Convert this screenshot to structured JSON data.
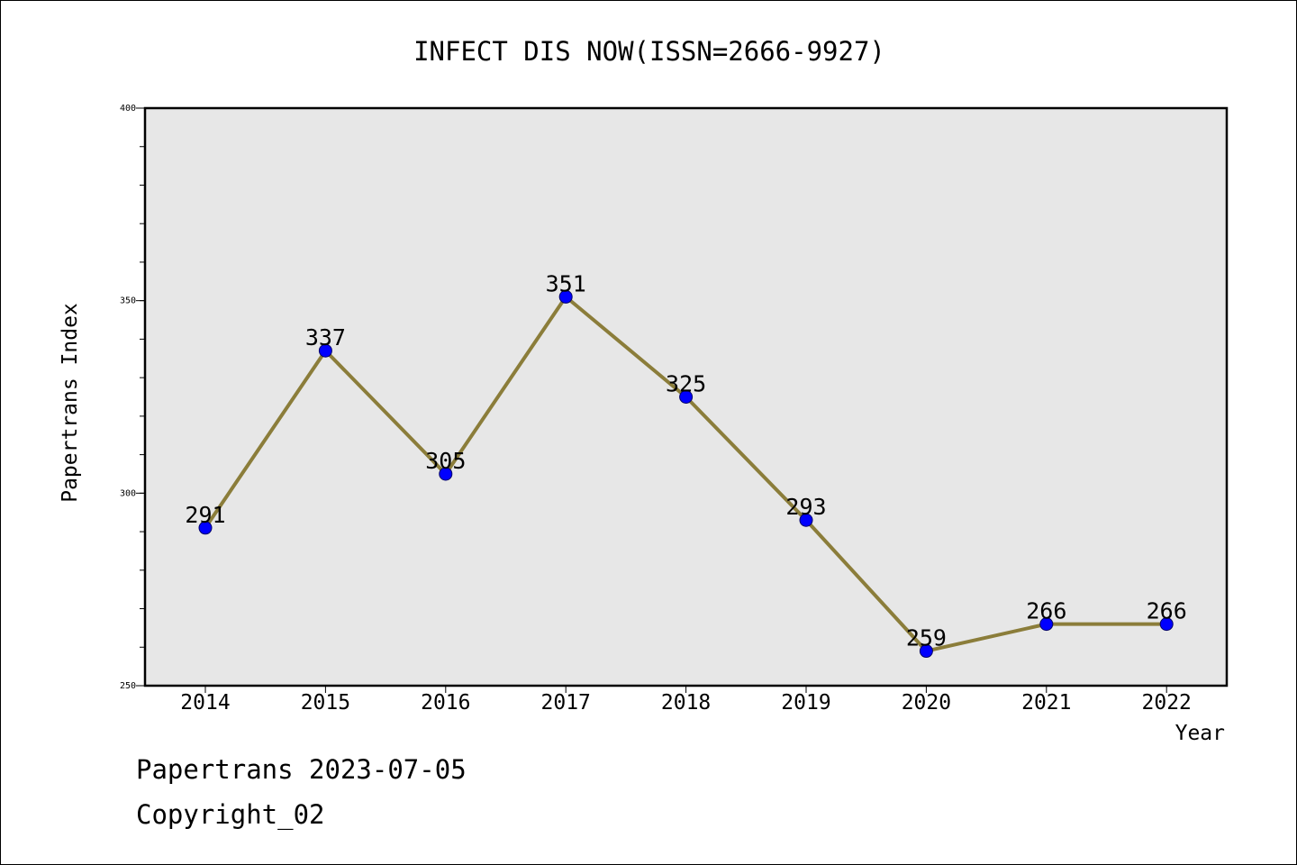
{
  "chart_data": {
    "type": "line",
    "title": "INFECT DIS NOW(ISSN=2666-9927)",
    "xlabel": "Year",
    "ylabel": "Papertrans Index",
    "categories": [
      "2014",
      "2015",
      "2016",
      "2017",
      "2018",
      "2019",
      "2020",
      "2021",
      "2022"
    ],
    "series": [
      {
        "values": [
          291,
          337,
          305,
          351,
          325,
          293,
          259,
          266,
          266
        ]
      }
    ],
    "data_labels": [
      "291",
      "337",
      "305",
      "351",
      "325",
      "293",
      "259",
      "266",
      "266"
    ],
    "ylim": [
      250,
      400
    ],
    "y_tick_labels": [
      "250",
      "300",
      "350",
      "400"
    ],
    "y_ticks": [
      250,
      300,
      350,
      400
    ],
    "y_minor_step": 10,
    "grid": false,
    "line_color": "#8b7d3a",
    "marker_color": "#0000ff",
    "plot_background": "#e7e7e7"
  },
  "footer": {
    "line1": "Papertrans 2023-07-05",
    "line2": "Copyright_02"
  }
}
